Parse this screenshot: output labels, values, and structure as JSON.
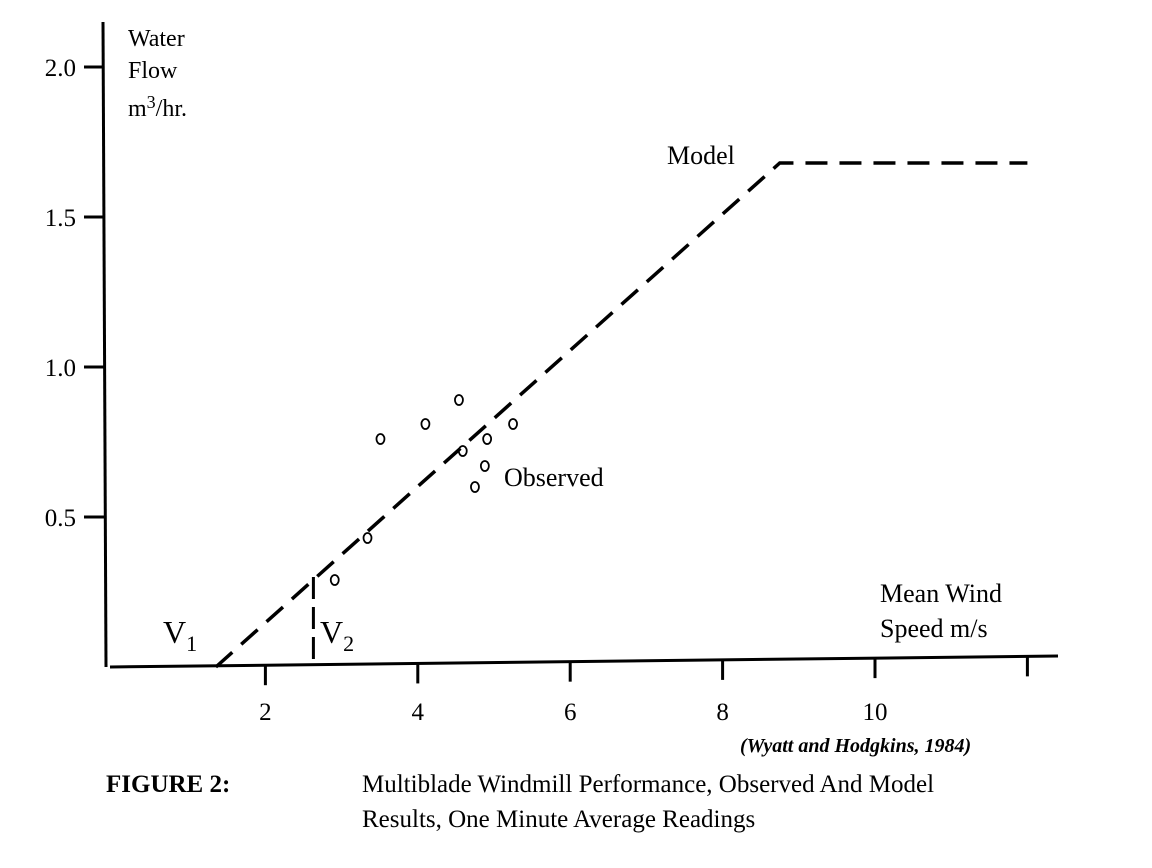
{
  "chart_data": {
    "type": "line",
    "ylabel_lines": [
      "Water",
      "Flow",
      "m",
      "3",
      "/hr."
    ],
    "xlabel_lines": [
      "Mean Wind",
      "Speed m/s"
    ],
    "x_ticks": [
      2,
      4,
      6,
      8,
      10,
      12
    ],
    "x_tick_labels": [
      "2",
      "4",
      "6",
      "8",
      "10"
    ],
    "y_ticks": [
      0.5,
      1.0,
      1.5,
      2.0
    ],
    "y_tick_labels": [
      "0.5",
      "1.0",
      "1.5",
      "2.0"
    ],
    "xlim": [
      0,
      12.5
    ],
    "ylim": [
      0,
      2.15
    ],
    "grid": false,
    "series": [
      {
        "name": "Model",
        "style": "dashed",
        "x": [
          1.35,
          8.75,
          12.0
        ],
        "y": [
          0.0,
          1.68,
          1.68
        ]
      },
      {
        "name": "Observed",
        "style": "open-circle",
        "x": [
          3.51,
          4.1,
          4.54,
          4.91,
          5.25,
          4.59,
          4.88,
          4.75,
          3.34,
          2.91
        ],
        "y": [
          0.76,
          0.81,
          0.89,
          0.76,
          0.81,
          0.72,
          0.67,
          0.6,
          0.43,
          0.29
        ]
      }
    ],
    "annotations": {
      "v1": {
        "main": "V",
        "sub": "1",
        "x": 1.35
      },
      "v2": {
        "main": "V",
        "sub": "2",
        "x": 2.63
      },
      "model_label": "Model",
      "observed_label": "Observed"
    },
    "source": "(Wyatt and Hodgkins, 1984)",
    "caption_label": "FIGURE 2:",
    "caption_lines": [
      "Multiblade Windmill Performance, Observed And Model",
      "Results, One Minute Average Readings"
    ]
  }
}
